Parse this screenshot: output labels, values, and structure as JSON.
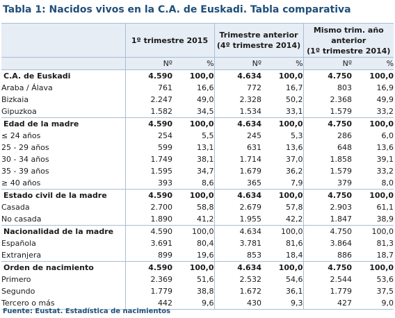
{
  "title": "Tabla 1: Nacidos vivos en la C.A. de Euskadi. Tabla comparativa",
  "header": {
    "col1": "1º trimestre 2015",
    "col2_line1": "Trimestre anterior",
    "col2_line2": "(4º trimestre 2014)",
    "col3_line1": "Mismo trim. año",
    "col3_line2": "anterior",
    "col3_line3": "(1º trimestre 2014)",
    "sub_n": "Nº",
    "sub_pct": "%"
  },
  "rows": [
    {
      "label": "C.A. de Euskadi",
      "type": "section",
      "v": [
        "4.590",
        "100,0",
        "4.634",
        "100,0",
        "4.750",
        "100,0"
      ]
    },
    {
      "label": "Araba / Álava",
      "type": "item",
      "v": [
        "761",
        "16,6",
        "772",
        "16,7",
        "803",
        "16,9"
      ]
    },
    {
      "label": "Bizkaia",
      "type": "item",
      "v": [
        "2.247",
        "49,0",
        "2.328",
        "50,2",
        "2.368",
        "49,9"
      ]
    },
    {
      "label": "Gipuzkoa",
      "type": "item",
      "v": [
        "1.582",
        "34,5",
        "1.534",
        "33,1",
        "1.579",
        "33,2"
      ]
    },
    {
      "label": "Edad de la madre",
      "type": "section",
      "v": [
        "4.590",
        "100,0",
        "4.634",
        "100,0",
        "4.750",
        "100,0"
      ]
    },
    {
      "label": "≤ 24 años",
      "type": "item",
      "v": [
        "254",
        "5,5",
        "245",
        "5,3",
        "286",
        "6,0"
      ]
    },
    {
      "label": "25 - 29 años",
      "type": "item",
      "v": [
        "599",
        "13,1",
        "631",
        "13,6",
        "648",
        "13,6"
      ]
    },
    {
      "label": "30 - 34 años",
      "type": "item",
      "v": [
        "1.749",
        "38,1",
        "1.714",
        "37,0",
        "1.858",
        "39,1"
      ]
    },
    {
      "label": "35 - 39 años",
      "type": "item",
      "v": [
        "1.595",
        "34,7",
        "1.679",
        "36,2",
        "1.579",
        "33,2"
      ]
    },
    {
      "label": "≥ 40 años",
      "type": "item",
      "v": [
        "393",
        "8,6",
        "365",
        "7,9",
        "379",
        "8,0"
      ]
    },
    {
      "label": "Estado civil de la madre",
      "type": "section",
      "v": [
        "4.590",
        "100,0",
        "4.634",
        "100,0",
        "4.750",
        "100,0"
      ]
    },
    {
      "label": "Casada",
      "type": "item",
      "v": [
        "2.700",
        "58,8",
        "2.679",
        "57,8",
        "2.903",
        "61,1"
      ]
    },
    {
      "label": "No casada",
      "type": "item",
      "v": [
        "1.890",
        "41,2",
        "1.955",
        "42,2",
        "1.847",
        "38,9"
      ]
    },
    {
      "label": "Nacionalidad de la madre",
      "type": "section-normal",
      "v": [
        "4.590",
        "100,0",
        "4.634",
        "100,0",
        "4.750",
        "100,0"
      ]
    },
    {
      "label": "Española",
      "type": "item",
      "v": [
        "3.691",
        "80,4",
        "3.781",
        "81,6",
        "3.864",
        "81,3"
      ]
    },
    {
      "label": "Extranjera",
      "type": "item",
      "v": [
        "899",
        "19,6",
        "853",
        "18,4",
        "886",
        "18,7"
      ]
    },
    {
      "label": "Orden de nacimiento",
      "type": "section",
      "v": [
        "4.590",
        "100,0",
        "4.634",
        "100,0",
        "4.750",
        "100,0"
      ]
    },
    {
      "label": "Primero",
      "type": "item",
      "v": [
        "2.369",
        "51,6",
        "2.532",
        "54,6",
        "2.544",
        "53,6"
      ]
    },
    {
      "label": "Segundo",
      "type": "item",
      "v": [
        "1.779",
        "38,8",
        "1.672",
        "36,1",
        "1.779",
        "37,5"
      ]
    },
    {
      "label": "Tercero o más",
      "type": "item",
      "v": [
        "442",
        "9,6",
        "430",
        "9,3",
        "427",
        "9,0"
      ]
    }
  ],
  "source": "Fuente: Eustat. Estadística de nacimientos",
  "colors": {
    "title": "#1f4e79",
    "header_bg": "#e6edf5",
    "border": "#a8bdd3"
  }
}
